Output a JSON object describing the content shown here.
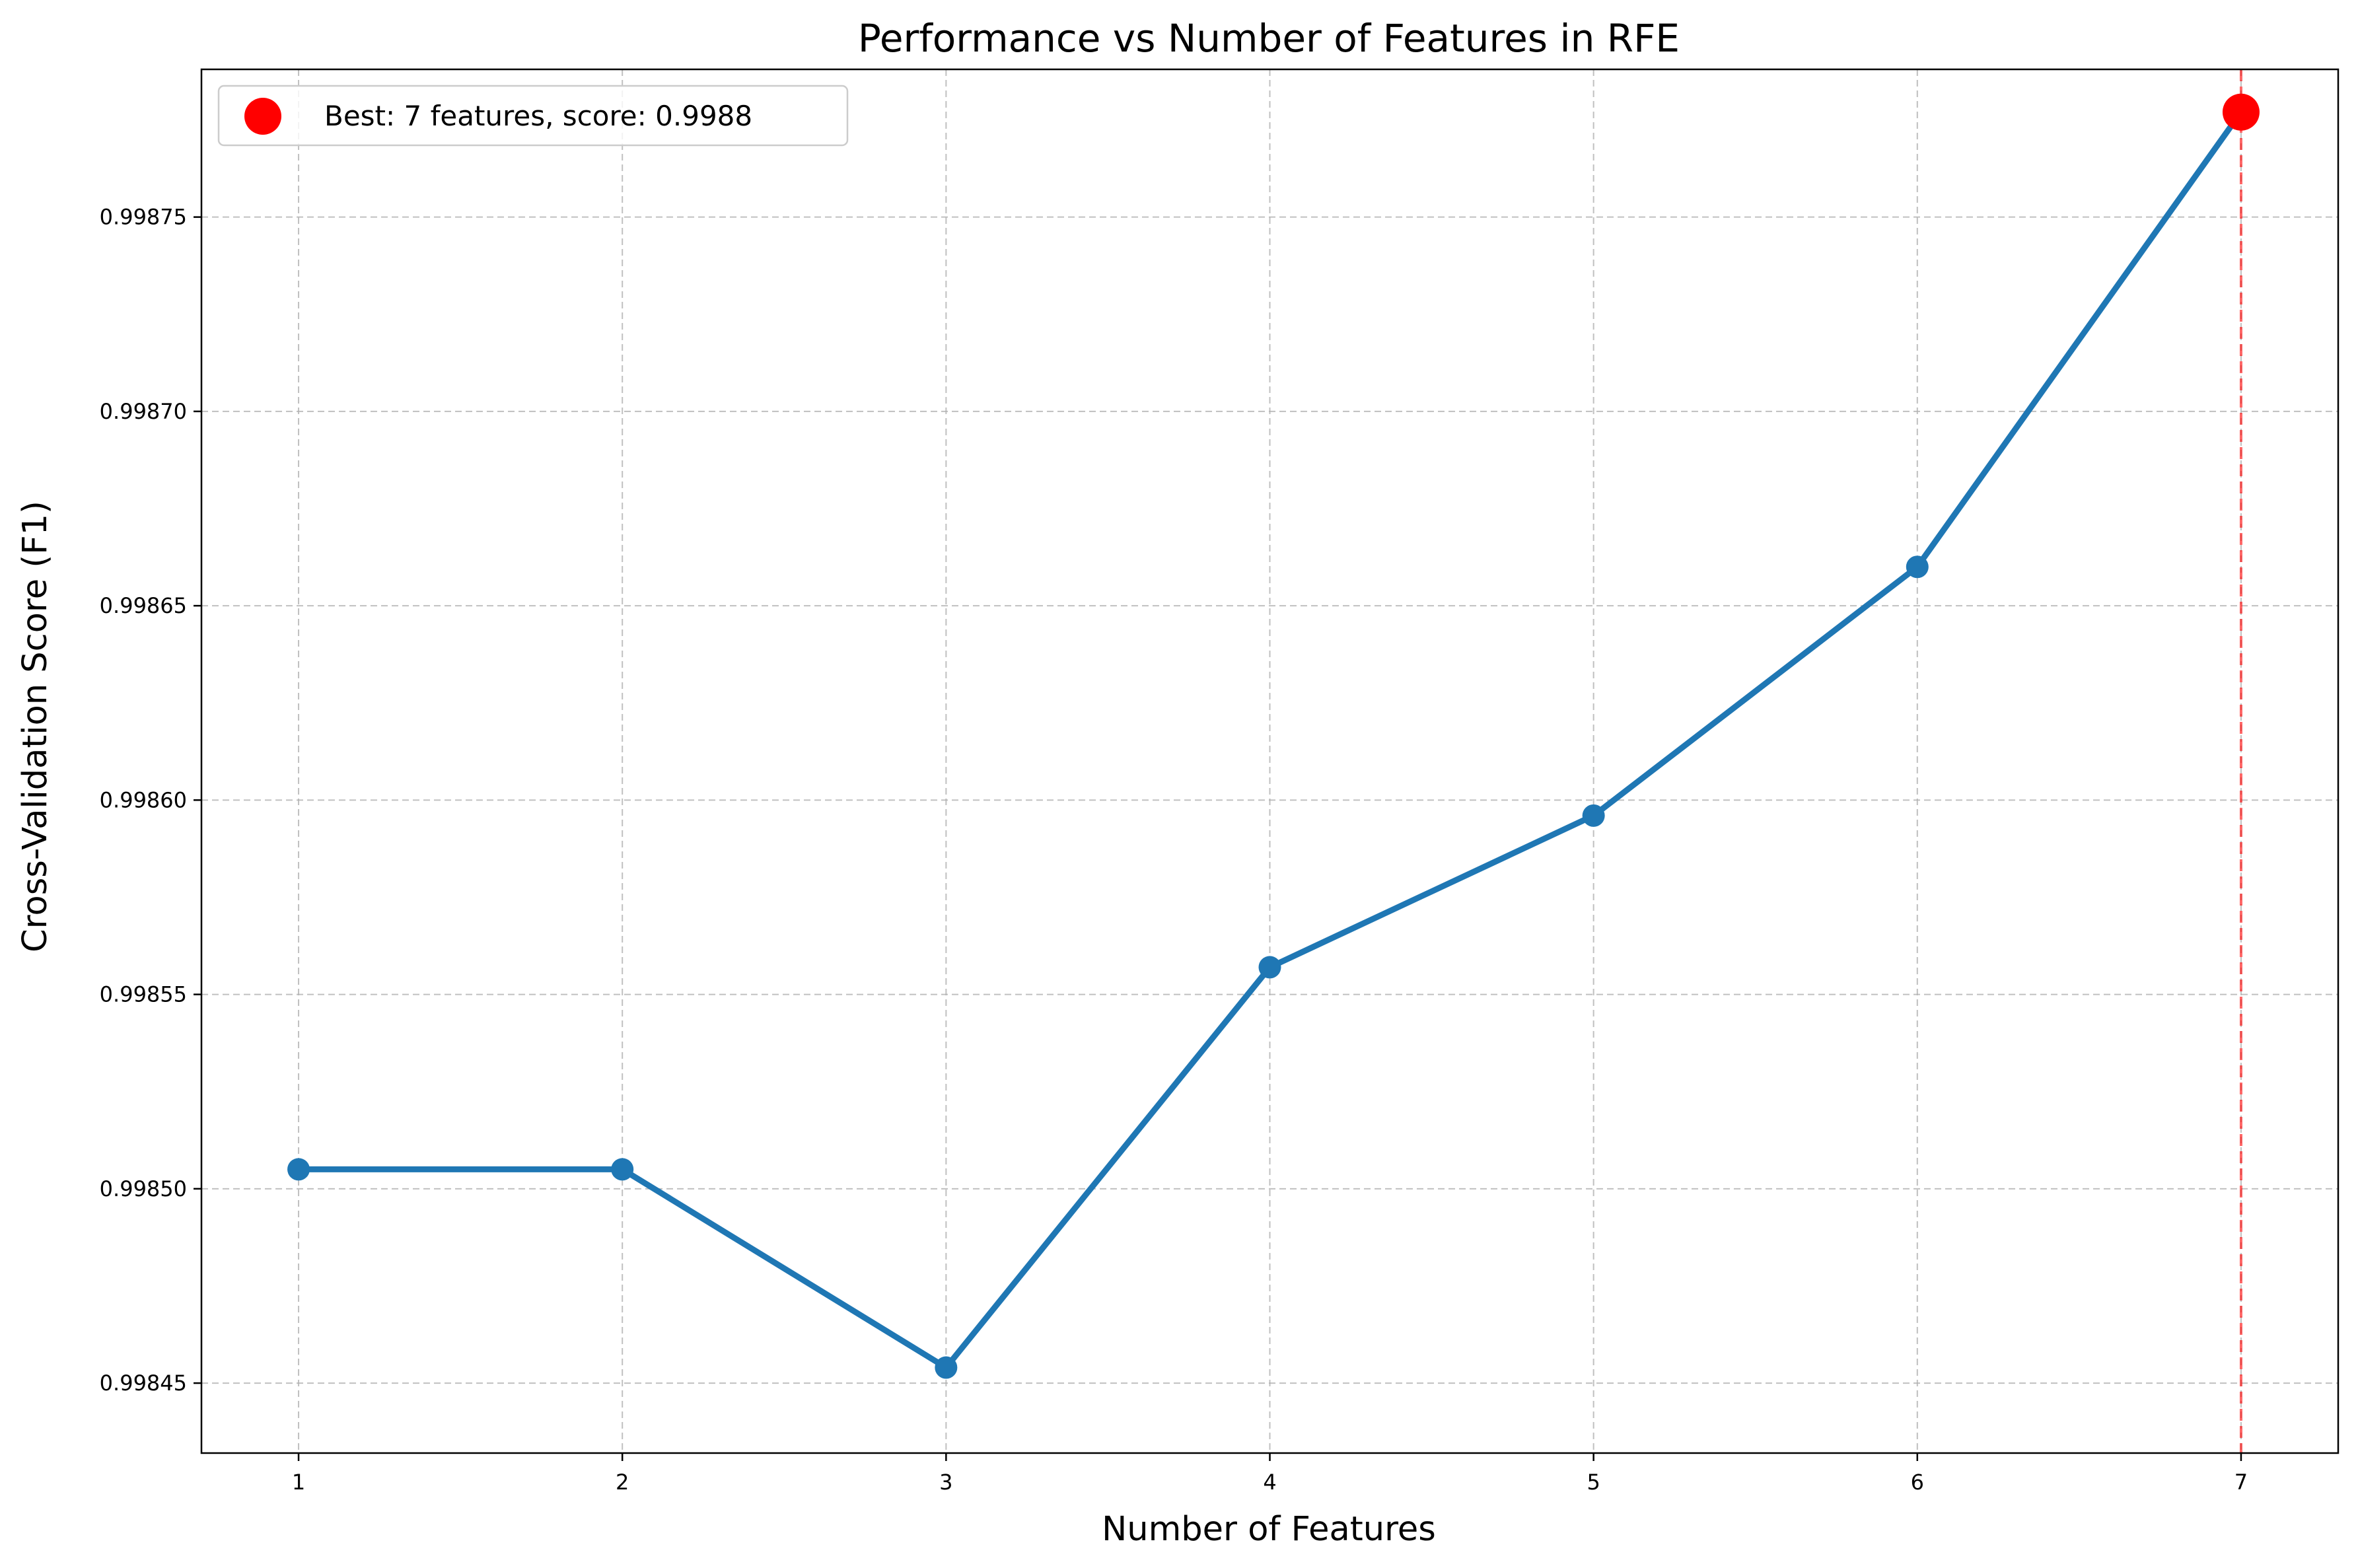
{
  "chart_data": {
    "type": "line",
    "title": "Performance vs Number of Features in RFE",
    "xlabel": "Number of Features",
    "ylabel": "Cross-Validation Score (F1)",
    "x": [
      1,
      2,
      3,
      4,
      5,
      6,
      7
    ],
    "series": [
      {
        "values": [
          0.998505,
          0.998505,
          0.998454,
          0.998557,
          0.998596,
          0.99866,
          0.998777
        ],
        "color": "#1f77b4"
      }
    ],
    "xlim": [
      0.7,
      7.3
    ],
    "ylim": [
      0.998432,
      0.998788
    ],
    "xticks": [
      1,
      2,
      3,
      4,
      5,
      6,
      7
    ],
    "xtick_labels": [
      "1",
      "2",
      "3",
      "4",
      "5",
      "6",
      "7"
    ],
    "yticks": [
      0.99845,
      0.9985,
      0.99855,
      0.9986,
      0.99865,
      0.9987,
      0.99875
    ],
    "ytick_labels": [
      "0.99845",
      "0.99850",
      "0.99855",
      "0.99860",
      "0.99865",
      "0.99870",
      "0.99875"
    ],
    "grid": true,
    "best": {
      "x": 7,
      "y": 0.998777,
      "color": "#ff0000"
    },
    "vline": {
      "x": 7,
      "color": "#ff0000"
    },
    "legend": {
      "position": "top-left",
      "label": "Best: 7 features, score: 0.9988"
    }
  }
}
